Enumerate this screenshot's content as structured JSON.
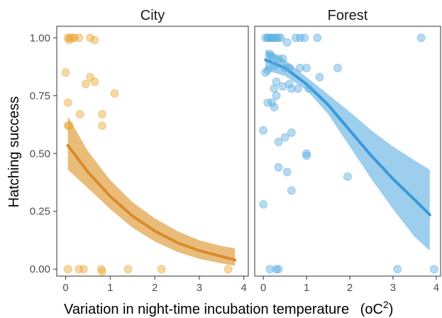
{
  "chart_data": {
    "type": "scatter",
    "ylabel": "Hatching success",
    "xlabel": "Variation in night-time incubation temperature",
    "xlabel_unit_base": "(",
    "xlabel_unit_o": "o",
    "xlabel_unit_c": "C",
    "xlabel_unit_exp": "2",
    "xlabel_unit_close": ")",
    "xlim": [
      -0.2,
      4.1
    ],
    "ylim": [
      -0.03,
      1.05
    ],
    "x_ticks": [
      0,
      1,
      2,
      3,
      4
    ],
    "y_ticks": [
      0.0,
      0.25,
      0.5,
      0.75,
      1.0
    ],
    "y_tick_labels": [
      "0.00",
      "0.25",
      "0.50",
      "0.75",
      "1.00"
    ],
    "grid": false,
    "panels": [
      {
        "title": "City",
        "point_color": "#e8a838",
        "line_color": "#d98a2b",
        "band_color": "#e6b063",
        "points": [
          [
            0.05,
            1.0
          ],
          [
            0.08,
            0.99
          ],
          [
            0.1,
            1.0
          ],
          [
            0.15,
            1.0
          ],
          [
            0.3,
            1.0
          ],
          [
            0.2,
            1.0
          ],
          [
            0.55,
            1.0
          ],
          [
            0.65,
            0.99
          ],
          [
            0.0,
            0.85
          ],
          [
            0.55,
            0.83
          ],
          [
            0.45,
            0.8
          ],
          [
            0.65,
            0.81
          ],
          [
            1.1,
            0.76
          ],
          [
            0.05,
            0.72
          ],
          [
            0.32,
            0.67
          ],
          [
            0.82,
            0.67
          ],
          [
            0.82,
            0.62
          ],
          [
            0.05,
            0.62
          ],
          [
            0.08,
            0.62
          ],
          [
            0.05,
            0.0
          ],
          [
            0.3,
            0.0
          ],
          [
            0.4,
            0.0
          ],
          [
            0.8,
            0.0
          ],
          [
            0.82,
            -0.01
          ],
          [
            1.4,
            0.0
          ],
          [
            2.15,
            0.0
          ],
          [
            3.65,
            0.0
          ]
        ],
        "fit_x": [
          0.05,
          0.5,
          1.0,
          1.5,
          2.0,
          2.5,
          3.0,
          3.5,
          3.8
        ],
        "fit_y": [
          0.535,
          0.42,
          0.315,
          0.23,
          0.165,
          0.115,
          0.08,
          0.055,
          0.04
        ],
        "fit_lower": [
          0.43,
          0.35,
          0.26,
          0.18,
          0.12,
          0.075,
          0.045,
          0.025,
          0.015
        ],
        "fit_upper": [
          0.66,
          0.51,
          0.385,
          0.29,
          0.22,
          0.165,
          0.125,
          0.1,
          0.09
        ]
      },
      {
        "title": "Forest",
        "point_color": "#5aaddf",
        "line_color": "#3b99d8",
        "band_color": "#8cc6ea",
        "points": [
          [
            0.05,
            1.0
          ],
          [
            0.1,
            1.0
          ],
          [
            0.12,
            1.0
          ],
          [
            0.18,
            1.0
          ],
          [
            0.2,
            1.0
          ],
          [
            0.25,
            1.0
          ],
          [
            0.3,
            1.0
          ],
          [
            0.35,
            1.0
          ],
          [
            0.4,
            1.0
          ],
          [
            0.75,
            1.0
          ],
          [
            0.85,
            1.0
          ],
          [
            0.95,
            1.0
          ],
          [
            1.25,
            1.0
          ],
          [
            3.65,
            1.0
          ],
          [
            0.55,
            0.98
          ],
          [
            0.15,
            0.93
          ],
          [
            0.2,
            0.92
          ],
          [
            0.35,
            0.91
          ],
          [
            0.45,
            0.91
          ],
          [
            0.25,
            0.88
          ],
          [
            0.5,
            0.87
          ],
          [
            0.6,
            0.87
          ],
          [
            0.85,
            0.87
          ],
          [
            1.0,
            0.87
          ],
          [
            1.72,
            0.87
          ],
          [
            0.1,
            0.86
          ],
          [
            0.05,
            0.85
          ],
          [
            1.3,
            0.83
          ],
          [
            0.3,
            0.81
          ],
          [
            0.6,
            0.8
          ],
          [
            0.45,
            0.79
          ],
          [
            1.05,
            0.78
          ],
          [
            0.25,
            0.78
          ],
          [
            0.65,
            0.78
          ],
          [
            0.8,
            0.78
          ],
          [
            0.3,
            0.75
          ],
          [
            0.2,
            0.72
          ],
          [
            0.1,
            0.72
          ],
          [
            0.25,
            0.7
          ],
          [
            0.0,
            0.6
          ],
          [
            0.65,
            0.59
          ],
          [
            0.5,
            0.57
          ],
          [
            0.35,
            0.55
          ],
          [
            1.0,
            0.5
          ],
          [
            1.0,
            0.49
          ],
          [
            0.35,
            0.44
          ],
          [
            0.55,
            0.42
          ],
          [
            1.95,
            0.4
          ],
          [
            0.65,
            0.34
          ],
          [
            0.0,
            0.28
          ],
          [
            0.15,
            0.0
          ],
          [
            0.3,
            0.0
          ],
          [
            0.35,
            0.0
          ],
          [
            3.1,
            0.0
          ],
          [
            3.95,
            0.0
          ]
        ],
        "fit_x": [
          0.05,
          0.5,
          1.0,
          1.5,
          2.0,
          2.5,
          3.0,
          3.5,
          3.85
        ],
        "fit_y": [
          0.905,
          0.87,
          0.8,
          0.71,
          0.6,
          0.49,
          0.39,
          0.3,
          0.235
        ],
        "fit_lower": [
          0.86,
          0.835,
          0.775,
          0.67,
          0.53,
          0.39,
          0.26,
          0.14,
          0.08
        ],
        "fit_upper": [
          0.95,
          0.905,
          0.83,
          0.755,
          0.68,
          0.6,
          0.53,
          0.47,
          0.43
        ]
      }
    ]
  }
}
